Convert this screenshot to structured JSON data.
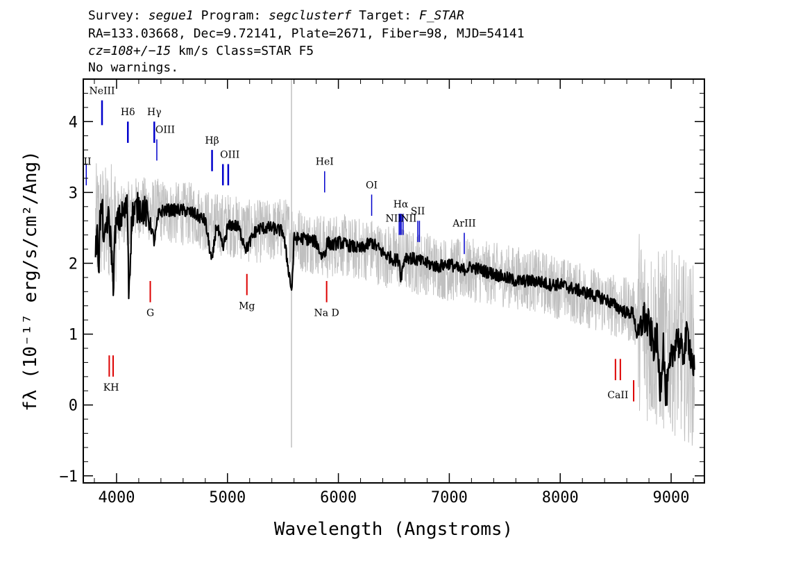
{
  "header": {
    "line1": {
      "k1": "Survey: ",
      "v1": "segue1",
      "k2": " Program: ",
      "v2": "segclusterf",
      "k3": " Target: ",
      "v3": "F_STAR"
    },
    "line2": "RA=133.03668, Dec=9.72141, Plate=2671, Fiber=98, MJD=54141",
    "line3": {
      "cz": "cz=108+/−15",
      "rest": " km/s Class=STAR F5"
    },
    "line4": "No warnings."
  },
  "chart_data": {
    "type": "line",
    "xlabel": "Wavelength (Angstroms)",
    "ylabel": "fλ (10⁻¹⁷ erg/s/cm²/Ang)",
    "xlim": [
      3700,
      9300
    ],
    "ylim": [
      -1.1,
      4.6
    ],
    "xticks": [
      4000,
      5000,
      6000,
      7000,
      8000,
      9000
    ],
    "yticks": [
      -1,
      0,
      1,
      2,
      3,
      4
    ],
    "colors": {
      "flux": "#000000",
      "error": "#c0c0c0",
      "emission": "#0000cc",
      "absorption": "#dd0000"
    },
    "series": [
      {
        "style": "thin-gray-noise",
        "x": [
          3810,
          3850,
          3900,
          3950,
          4000,
          4100,
          4200,
          4300,
          4400,
          4500,
          4600,
          4700,
          4800,
          4900,
          5000,
          5100,
          5200,
          5300,
          5400,
          5500,
          5600,
          5700,
          5800,
          5900,
          6000,
          6100,
          6200,
          6300,
          6400,
          6500,
          6600,
          6700,
          6800,
          6900,
          7000,
          7200,
          7400,
          7600,
          7800,
          8000,
          8200,
          8400,
          8500,
          8600,
          8700,
          8800,
          8900,
          9000,
          9100,
          9210
        ],
        "values": [
          2.5,
          2.6,
          2.5,
          2.6,
          2.6,
          2.7,
          2.8,
          2.75,
          2.75,
          2.7,
          2.7,
          2.7,
          2.6,
          2.55,
          2.55,
          2.5,
          2.45,
          2.45,
          2.45,
          2.5,
          2.4,
          2.3,
          2.3,
          2.2,
          2.3,
          2.2,
          2.2,
          2.2,
          2.1,
          2.1,
          2.05,
          2.0,
          2.0,
          1.95,
          1.9,
          1.9,
          1.85,
          1.8,
          1.75,
          1.65,
          1.55,
          1.45,
          1.4,
          1.35,
          1.25,
          1.0,
          0.9,
          0.9,
          0.8,
          0.7
        ]
      },
      {
        "style": "thick-black",
        "x": [
          3810,
          3830,
          3840,
          3850,
          3870,
          3890,
          3910,
          3930,
          3950,
          3970,
          3990,
          4020,
          4060,
          4100,
          4110,
          4140,
          4200,
          4250,
          4300,
          4340,
          4380,
          4420,
          4500,
          4600,
          4700,
          4800,
          4860,
          4900,
          4960,
          5000,
          5050,
          5100,
          5170,
          5250,
          5300,
          5400,
          5500,
          5580,
          5600,
          5700,
          5800,
          5850,
          5880,
          5900,
          5950,
          6000,
          6100,
          6200,
          6300,
          6400,
          6500,
          6550,
          6563,
          6600,
          6700,
          6800,
          6900,
          7000,
          7100,
          7200,
          7300,
          7400,
          7500,
          7600,
          7700,
          7800,
          7900,
          8000,
          8100,
          8200,
          8300,
          8400,
          8450,
          8500,
          8550,
          8600,
          8660,
          8700,
          8750,
          8800,
          8850,
          8870,
          8900,
          8930,
          8950,
          9000,
          9050,
          9100,
          9150,
          9210
        ],
        "values": [
          2.2,
          2.4,
          1.9,
          2.6,
          2.8,
          2.2,
          2.6,
          2.6,
          2.3,
          1.7,
          2.5,
          2.6,
          2.7,
          2.8,
          1.6,
          2.7,
          2.8,
          2.75,
          2.6,
          2.3,
          2.7,
          2.75,
          2.75,
          2.75,
          2.7,
          2.6,
          2.0,
          2.55,
          2.2,
          2.5,
          2.55,
          2.5,
          2.2,
          2.45,
          2.5,
          2.5,
          2.45,
          1.6,
          2.35,
          2.35,
          2.3,
          2.1,
          2.15,
          2.3,
          2.25,
          2.3,
          2.25,
          2.2,
          2.3,
          2.15,
          2.05,
          2.05,
          1.8,
          2.1,
          2.05,
          2.0,
          1.95,
          2.0,
          1.9,
          1.95,
          1.9,
          1.85,
          1.8,
          1.75,
          1.75,
          1.75,
          1.7,
          1.7,
          1.65,
          1.6,
          1.55,
          1.5,
          1.45,
          1.4,
          1.35,
          1.3,
          1.3,
          0.9,
          1.25,
          1.1,
          0.8,
          1.0,
          0.2,
          0.9,
          0.1,
          0.6,
          1.0,
          0.7,
          1.0,
          0.45
        ]
      }
    ],
    "emission_lines": [
      {
        "name": "NeIII",
        "x": 3869
      },
      {
        "name": "Hδ",
        "x": 4102
      },
      {
        "name": "Hγ",
        "x": 4340
      },
      {
        "name": "OIII",
        "x": 4363
      },
      {
        "name": "Hβ",
        "x": 4861
      },
      {
        "name": "OIII",
        "x": 4959
      },
      {
        "name": "OIII",
        "x": 5007
      },
      {
        "name": "HeI",
        "x": 5876
      },
      {
        "name": "OI",
        "x": 6300
      },
      {
        "name": "NII",
        "x": 6548
      },
      {
        "name": "Hα",
        "x": 6563
      },
      {
        "name": "NII",
        "x": 6583
      },
      {
        "name": "SII",
        "x": 6716
      },
      {
        "name": "SII",
        "x": 6731
      },
      {
        "name": "ArIII",
        "x": 7135
      },
      {
        "name": "OII",
        "x": 3727
      }
    ],
    "absorption_lines": [
      {
        "name": "K",
        "x": 3934
      },
      {
        "name": "H",
        "x": 3969
      },
      {
        "name": "G",
        "x": 4304
      },
      {
        "name": "Mg",
        "x": 5175
      },
      {
        "name": "Na D",
        "x": 5894
      },
      {
        "name": "CaII",
        "x": 8498
      },
      {
        "name": "CaII",
        "x": 8542
      },
      {
        "name": "CaII",
        "x": 8662
      }
    ],
    "sky_line": {
      "x": 5577
    }
  }
}
